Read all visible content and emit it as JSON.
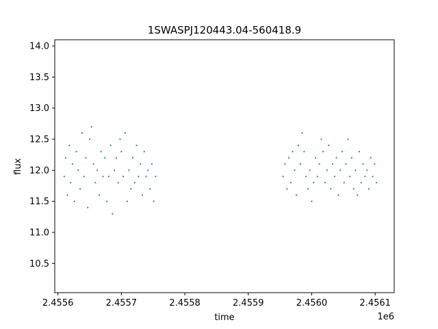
{
  "chart_data": {
    "type": "scatter",
    "title": "1SWASPJ120443.04-560418.9",
    "xlabel": "time",
    "ylabel": "flux",
    "x_offset_label": "1e6",
    "xlim": [
      2455595,
      2456130
    ],
    "ylim": [
      10.03,
      14.1
    ],
    "x_ticks": [
      2455610,
      2455620,
      2455630,
      2455640,
      2455650,
      2455660,
      2455670,
      2455680,
      2455690,
      2455700,
      2455710,
      2455720,
      2455730,
      2455740,
      2455750,
      2455760,
      2455770,
      2455780,
      2455790,
      2455800,
      2455810,
      2455820,
      2455830,
      2455840,
      2455850,
      2455860,
      2455870,
      2455880,
      2455890,
      2455900,
      2455910,
      2455920,
      2455930,
      2455940,
      2455950,
      2455960,
      2455970,
      2455980,
      2455990,
      2456000,
      2456010,
      2456020,
      2456030,
      2456040,
      2456050,
      2456060,
      2456070,
      2456080,
      2456090,
      2456100
    ],
    "x_tick_values": [
      2455600,
      2455700,
      2455800,
      2455900,
      2456000,
      2456100
    ],
    "x_tick_labels": [
      "2.4556",
      "2.4557",
      "2.4558",
      "2.4559",
      "2.4560",
      "2.4561"
    ],
    "y_tick_values": [
      10.5,
      11.0,
      11.5,
      12.0,
      12.5,
      13.0,
      13.5,
      14.0
    ],
    "y_tick_labels": [
      "10.5",
      "11.0",
      "11.5",
      "12.0",
      "12.5",
      "13.0",
      "13.5",
      "14.0"
    ],
    "grid": false,
    "marker_color": "#1f77b4",
    "series": [
      {
        "x": [
          2455610,
          2455612,
          2455615,
          2455618,
          2455620,
          2455623,
          2455626,
          2455629,
          2455632,
          2455635,
          2455638,
          2455641,
          2455644,
          2455647,
          2455650,
          2455653,
          2455656,
          2455659,
          2455662,
          2455665,
          2455668,
          2455671,
          2455674,
          2455677,
          2455680,
          2455683,
          2455686,
          2455689,
          2455692,
          2455695,
          2455698,
          2455700,
          2455703,
          2455706,
          2455709,
          2455712,
          2455715,
          2455718,
          2455721,
          2455724,
          2455727,
          2455730,
          2455733,
          2455736,
          2455739,
          2455742,
          2455745,
          2455748,
          2455751,
          2455754
        ],
        "y": [
          11.9,
          12.2,
          11.6,
          12.4,
          11.8,
          12.1,
          11.5,
          12.3,
          12.0,
          11.7,
          12.6,
          11.9,
          12.2,
          11.4,
          12.5,
          12.7,
          12.1,
          11.8,
          12.0,
          11.6,
          12.3,
          11.9,
          12.2,
          11.5,
          11.9,
          12.4,
          11.3,
          12.0,
          12.2,
          11.8,
          12.5,
          12.3,
          11.9,
          12.6,
          11.5,
          12.0,
          11.7,
          12.2,
          11.8,
          12.4,
          11.9,
          12.1,
          11.6,
          12.3,
          11.9,
          12.0,
          11.7,
          12.1,
          11.5,
          11.9
        ]
      },
      {
        "x": [
          2455955,
          2455958,
          2455961,
          2455964,
          2455967,
          2455970,
          2455973,
          2455976,
          2455979,
          2455982,
          2455985,
          2455988,
          2455991,
          2455994,
          2455997,
          2456000,
          2456003,
          2456006,
          2456009,
          2456012,
          2456015,
          2456018,
          2456021,
          2456024,
          2456027,
          2456030,
          2456033,
          2456036,
          2456039,
          2456042,
          2456045,
          2456048,
          2456051,
          2456054,
          2456057,
          2456060,
          2456063,
          2456066,
          2456069,
          2456072,
          2456075,
          2456078,
          2456081,
          2456084,
          2456087,
          2456090,
          2456093,
          2456096,
          2456099,
          2456102
        ],
        "y": [
          11.9,
          12.1,
          11.7,
          12.2,
          11.8,
          12.3,
          12.0,
          11.6,
          12.4,
          12.1,
          12.6,
          12.3,
          11.9,
          11.7,
          12.0,
          11.5,
          11.8,
          12.2,
          11.9,
          12.1,
          12.5,
          12.3,
          11.8,
          12.0,
          12.4,
          11.7,
          12.1,
          11.9,
          12.2,
          11.6,
          12.0,
          12.3,
          11.8,
          12.1,
          12.5,
          11.9,
          12.2,
          11.7,
          12.0,
          11.6,
          12.3,
          11.8,
          12.1,
          11.9,
          12.0,
          11.7,
          12.2,
          11.9,
          12.1,
          11.8
        ]
      }
    ]
  }
}
